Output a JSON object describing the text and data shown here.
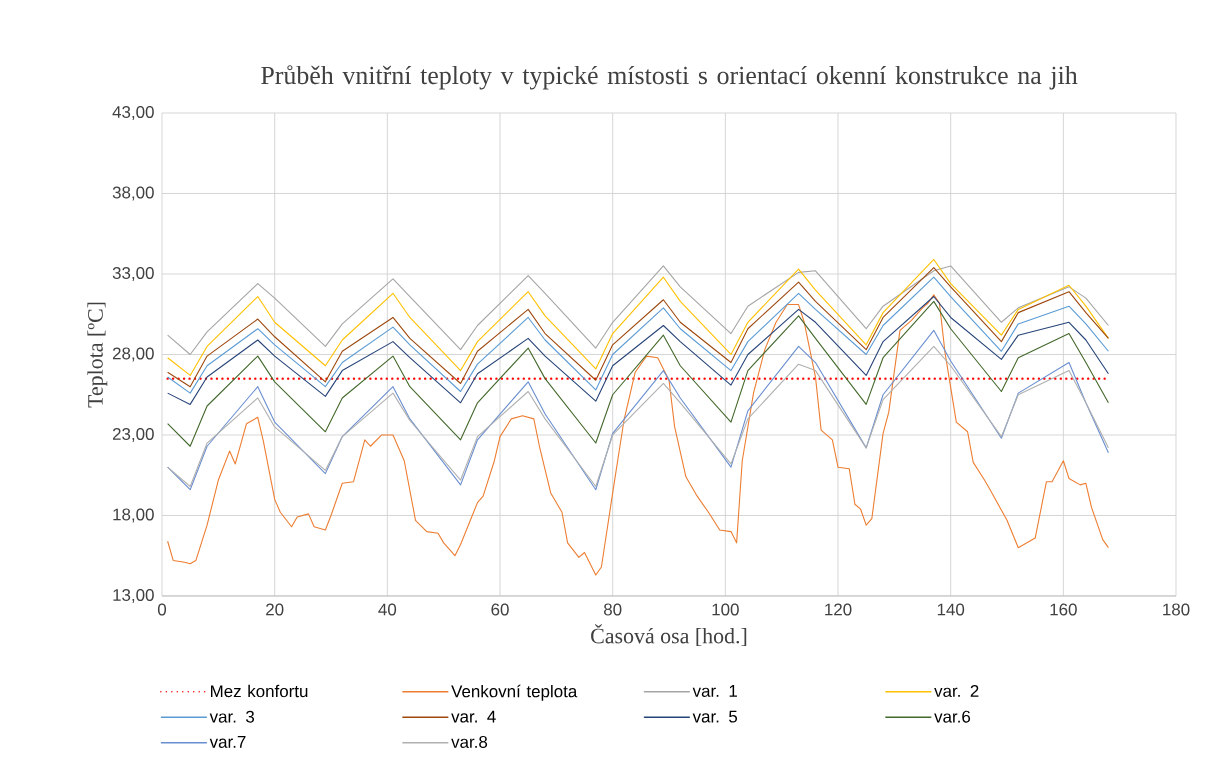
{
  "chart_data": {
    "type": "line",
    "title": "Průběh vnitřní teploty v typické místosti s orientací okenní konstrukce na jih",
    "xlabel": "Časová osa [hod.]",
    "ylabel": "Teplota [ºC]",
    "xlim": [
      0,
      180
    ],
    "xticks": [
      0,
      20,
      40,
      60,
      80,
      100,
      120,
      140,
      160,
      180
    ],
    "ylim": [
      13,
      43
    ],
    "yticks": [
      {
        "value": 13,
        "label": "13,00"
      },
      {
        "value": 18,
        "label": "18,00"
      },
      {
        "value": 23,
        "label": "23,00"
      },
      {
        "value": 28,
        "label": "28,00"
      },
      {
        "value": 33,
        "label": "33,00"
      },
      {
        "value": 38,
        "label": "38,00"
      },
      {
        "value": 43,
        "label": "43,00"
      }
    ],
    "grid": true,
    "legend": "bottom",
    "marker": "none",
    "line_style": "solid",
    "series": [
      {
        "name": "Mez konfortu",
        "color": "#ff0000",
        "line_style": "dotted",
        "x": [
          1,
          168
        ],
        "values": [
          26.5,
          26.5
        ]
      },
      {
        "name": "Venkovní teplota",
        "color": "#ed7d31",
        "x": [
          1,
          2,
          4,
          5,
          6,
          8,
          10,
          12,
          13,
          15,
          17,
          18,
          20,
          21,
          23,
          24,
          26,
          27,
          29,
          30,
          32,
          34,
          36,
          37,
          39,
          41,
          43,
          45,
          47,
          49,
          50,
          52,
          53,
          56,
          57,
          59,
          60,
          62,
          64,
          66,
          67,
          69,
          71,
          72,
          74,
          75,
          77,
          78,
          80,
          82,
          84,
          86,
          88,
          90,
          91,
          93,
          95,
          97,
          99,
          101,
          102,
          103,
          105,
          107,
          109,
          111,
          113,
          114,
          116,
          117,
          119,
          120,
          122,
          123,
          124,
          125,
          126,
          128,
          129,
          131,
          133,
          135,
          136,
          137,
          138,
          139,
          141,
          143,
          144,
          146,
          147,
          150,
          152,
          155,
          157,
          158,
          160,
          161,
          163,
          164,
          165,
          167,
          168
        ],
        "values": [
          16.4,
          15.2,
          15.1,
          15.0,
          15.2,
          17.4,
          20.2,
          22.0,
          21.2,
          23.7,
          24.1,
          22.6,
          19.0,
          18.2,
          17.3,
          17.9,
          18.1,
          17.3,
          17.1,
          18.0,
          20.0,
          20.1,
          22.7,
          22.3,
          23.0,
          23.0,
          21.4,
          17.7,
          17.0,
          16.9,
          16.3,
          15.5,
          16.2,
          18.8,
          19.2,
          21.4,
          22.9,
          24.0,
          24.2,
          24.0,
          22.3,
          19.4,
          18.2,
          16.3,
          15.4,
          15.7,
          14.3,
          14.8,
          19.4,
          23.9,
          26.9,
          27.9,
          27.8,
          26.4,
          23.5,
          20.4,
          19.2,
          18.2,
          17.1,
          17.0,
          16.3,
          21.4,
          25.6,
          28.3,
          30.0,
          31.1,
          31.1,
          30.0,
          26.6,
          23.3,
          22.7,
          21.0,
          20.9,
          18.7,
          18.4,
          17.4,
          17.8,
          23.1,
          24.4,
          29.5,
          30.1,
          30.9,
          31.2,
          31.7,
          31.2,
          28.1,
          23.8,
          23.2,
          21.3,
          20.2,
          19.6,
          17.7,
          16.0,
          16.6,
          20.1,
          20.1,
          21.4,
          20.3,
          19.9,
          20.0,
          18.5,
          16.5,
          16.0
        ]
      },
      {
        "name": "var. 1",
        "color": "#a5a5a5",
        "x": [
          1,
          5,
          8,
          17,
          20,
          29,
          32,
          41,
          44,
          53,
          56,
          65,
          68,
          77,
          80,
          89,
          92,
          101,
          104,
          113,
          116,
          125,
          128,
          137,
          140,
          149,
          152,
          161,
          164,
          168
        ],
        "values": [
          29.2,
          28.0,
          29.4,
          32.4,
          31.5,
          28.5,
          29.9,
          32.7,
          31.6,
          28.3,
          29.8,
          32.9,
          31.8,
          28.4,
          30.0,
          33.5,
          32.2,
          29.3,
          31.0,
          33.1,
          33.2,
          29.6,
          31.0,
          33.2,
          33.5,
          30.0,
          30.9,
          32.2,
          31.5,
          29.8
        ]
      },
      {
        "name": "var. 2",
        "color": "#ffc000",
        "x": [
          1,
          5,
          8,
          17,
          20,
          29,
          32,
          41,
          44,
          53,
          56,
          65,
          68,
          77,
          80,
          89,
          92,
          101,
          104,
          113,
          116,
          125,
          128,
          137,
          140,
          149,
          152,
          161,
          164,
          168
        ],
        "values": [
          27.8,
          26.7,
          28.5,
          31.6,
          30.0,
          27.3,
          28.9,
          31.8,
          30.3,
          27.0,
          28.8,
          31.9,
          30.4,
          27.1,
          29.3,
          32.8,
          31.3,
          28.0,
          30.0,
          33.3,
          32.0,
          28.6,
          30.6,
          33.9,
          32.4,
          29.2,
          30.8,
          32.3,
          31.0,
          29.0
        ]
      },
      {
        "name": "var. 3",
        "color": "#5b9bd5",
        "x": [
          1,
          5,
          8,
          17,
          20,
          29,
          32,
          41,
          44,
          53,
          56,
          65,
          68,
          77,
          80,
          89,
          92,
          101,
          104,
          113,
          116,
          125,
          128,
          137,
          140,
          149,
          152,
          161,
          164,
          168
        ],
        "values": [
          26.6,
          25.6,
          27.3,
          29.6,
          28.6,
          26.0,
          27.5,
          29.7,
          28.6,
          25.7,
          27.4,
          30.3,
          28.9,
          25.8,
          28.0,
          30.9,
          29.6,
          27.0,
          28.8,
          31.8,
          30.8,
          28.0,
          29.8,
          32.8,
          31.6,
          28.2,
          29.9,
          31.0,
          29.9,
          28.2
        ]
      },
      {
        "name": "var. 4",
        "color": "#9e480e",
        "x": [
          1,
          5,
          8,
          17,
          20,
          29,
          32,
          41,
          44,
          53,
          56,
          65,
          68,
          77,
          80,
          89,
          92,
          101,
          104,
          113,
          116,
          125,
          128,
          137,
          140,
          149,
          152,
          161,
          164,
          168
        ],
        "values": [
          26.9,
          26.0,
          27.9,
          30.2,
          29.1,
          26.3,
          28.2,
          30.3,
          29.0,
          26.2,
          28.2,
          30.8,
          29.3,
          26.4,
          28.6,
          31.4,
          30.0,
          27.5,
          29.6,
          32.5,
          31.3,
          28.3,
          30.3,
          33.4,
          32.2,
          28.8,
          30.6,
          31.9,
          30.6,
          29.0
        ]
      },
      {
        "name": "var. 5",
        "color": "#264478",
        "x": [
          1,
          5,
          8,
          17,
          20,
          29,
          32,
          41,
          44,
          53,
          56,
          65,
          68,
          77,
          80,
          89,
          92,
          101,
          104,
          113,
          116,
          125,
          128,
          137,
          140,
          149,
          152,
          161,
          164,
          168
        ],
        "values": [
          25.6,
          24.9,
          26.6,
          28.9,
          27.9,
          25.4,
          27.0,
          28.8,
          27.8,
          25.0,
          26.8,
          29.0,
          27.9,
          25.1,
          27.3,
          29.8,
          28.8,
          26.1,
          28.0,
          30.8,
          30.0,
          26.7,
          28.8,
          31.6,
          30.3,
          27.7,
          29.2,
          30.0,
          28.9,
          26.8
        ]
      },
      {
        "name": "var.6",
        "color": "#43682b",
        "x": [
          1,
          5,
          8,
          17,
          20,
          29,
          32,
          41,
          44,
          53,
          56,
          65,
          68,
          77,
          80,
          89,
          92,
          101,
          104,
          113,
          116,
          125,
          128,
          137,
          140,
          149,
          152,
          161,
          164,
          168
        ],
        "values": [
          23.7,
          22.3,
          24.8,
          27.9,
          26.3,
          23.2,
          25.3,
          27.9,
          26.0,
          22.7,
          25.0,
          28.4,
          26.5,
          22.5,
          25.5,
          29.2,
          27.3,
          23.8,
          27.0,
          30.4,
          29.0,
          24.9,
          27.8,
          31.3,
          29.6,
          25.7,
          27.8,
          29.3,
          27.5,
          25.0
        ]
      },
      {
        "name": "var.7",
        "color": "#698ed0",
        "x": [
          1,
          5,
          8,
          17,
          20,
          29,
          32,
          41,
          44,
          53,
          56,
          65,
          68,
          77,
          80,
          89,
          92,
          101,
          104,
          113,
          116,
          125,
          128,
          137,
          140,
          149,
          152,
          161,
          164,
          168
        ],
        "values": [
          21.0,
          19.6,
          22.3,
          26.0,
          23.8,
          20.6,
          22.9,
          26.0,
          24.0,
          19.9,
          22.7,
          26.3,
          24.3,
          19.6,
          23.1,
          27.0,
          25.3,
          21.0,
          24.5,
          28.5,
          27.5,
          22.2,
          25.5,
          29.5,
          27.6,
          22.8,
          25.6,
          27.5,
          25.0,
          21.9
        ]
      },
      {
        "name": "var.8",
        "color": "#b0b0b0",
        "x": [
          1,
          5,
          8,
          17,
          20,
          29,
          32,
          41,
          44,
          53,
          56,
          65,
          68,
          77,
          80,
          89,
          92,
          101,
          104,
          113,
          116,
          125,
          128,
          137,
          140,
          149,
          152,
          161,
          164,
          168
        ],
        "values": [
          21.0,
          19.8,
          22.5,
          25.3,
          23.5,
          20.8,
          22.9,
          25.6,
          23.9,
          20.2,
          22.9,
          25.7,
          24.0,
          19.8,
          23.0,
          26.2,
          25.0,
          21.2,
          24.0,
          27.4,
          27.0,
          22.2,
          25.2,
          28.5,
          27.3,
          22.9,
          25.5,
          27.0,
          25.0,
          22.2
        ]
      }
    ]
  }
}
